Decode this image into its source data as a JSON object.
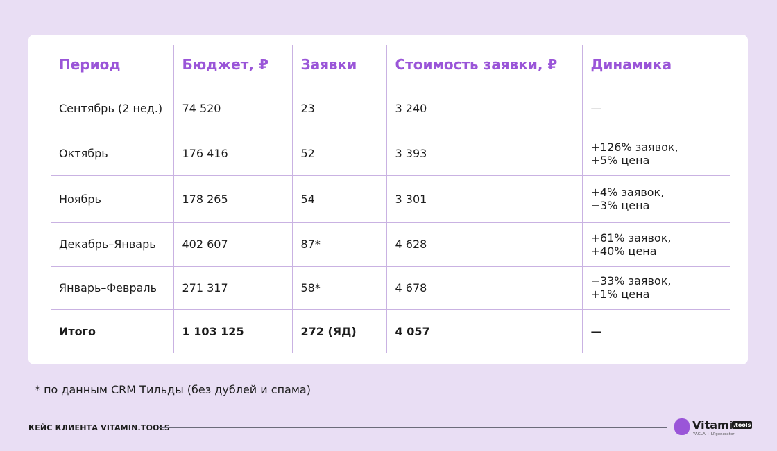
{
  "table": {
    "header": [
      "Период",
      "Бюджет, ₽",
      "Заявки",
      "Стоимость заявки, ₽",
      "Динамика"
    ],
    "rows": [
      [
        "Сентябрь (2 нед.)",
        "74 520",
        "23",
        "3 240",
        [
          "—"
        ]
      ],
      [
        "Октябрь",
        "176 416",
        "52",
        "3 393",
        [
          "+126% заявок,",
          "+5% цена"
        ]
      ],
      [
        "Ноябрь",
        "178 265",
        "54",
        "3 301",
        [
          "+4% заявок,",
          "−3% цена"
        ]
      ],
      [
        "Декабрь–Январь",
        "402 607",
        "87*",
        "4 628",
        [
          "+61% заявок,",
          "+40% цена"
        ]
      ],
      [
        "Январь–Февраль",
        "271 317",
        "58*",
        "4 678",
        [
          "−33% заявок,",
          "+1% цена"
        ]
      ]
    ],
    "total": [
      "Итого",
      "1 103 125",
      "272 (ЯД)",
      "4 057",
      [
        "—"
      ]
    ]
  },
  "footnote": "* по данным CRM Тильды (без дублей и спама)",
  "footer": {
    "label": "КЕЙС КЛИЕНТА VITAMIN.TOOLS",
    "logo": "Vitamin",
    "logo_badge": ".tools",
    "logo_sub": "YAGLA + LPgenerator"
  }
}
